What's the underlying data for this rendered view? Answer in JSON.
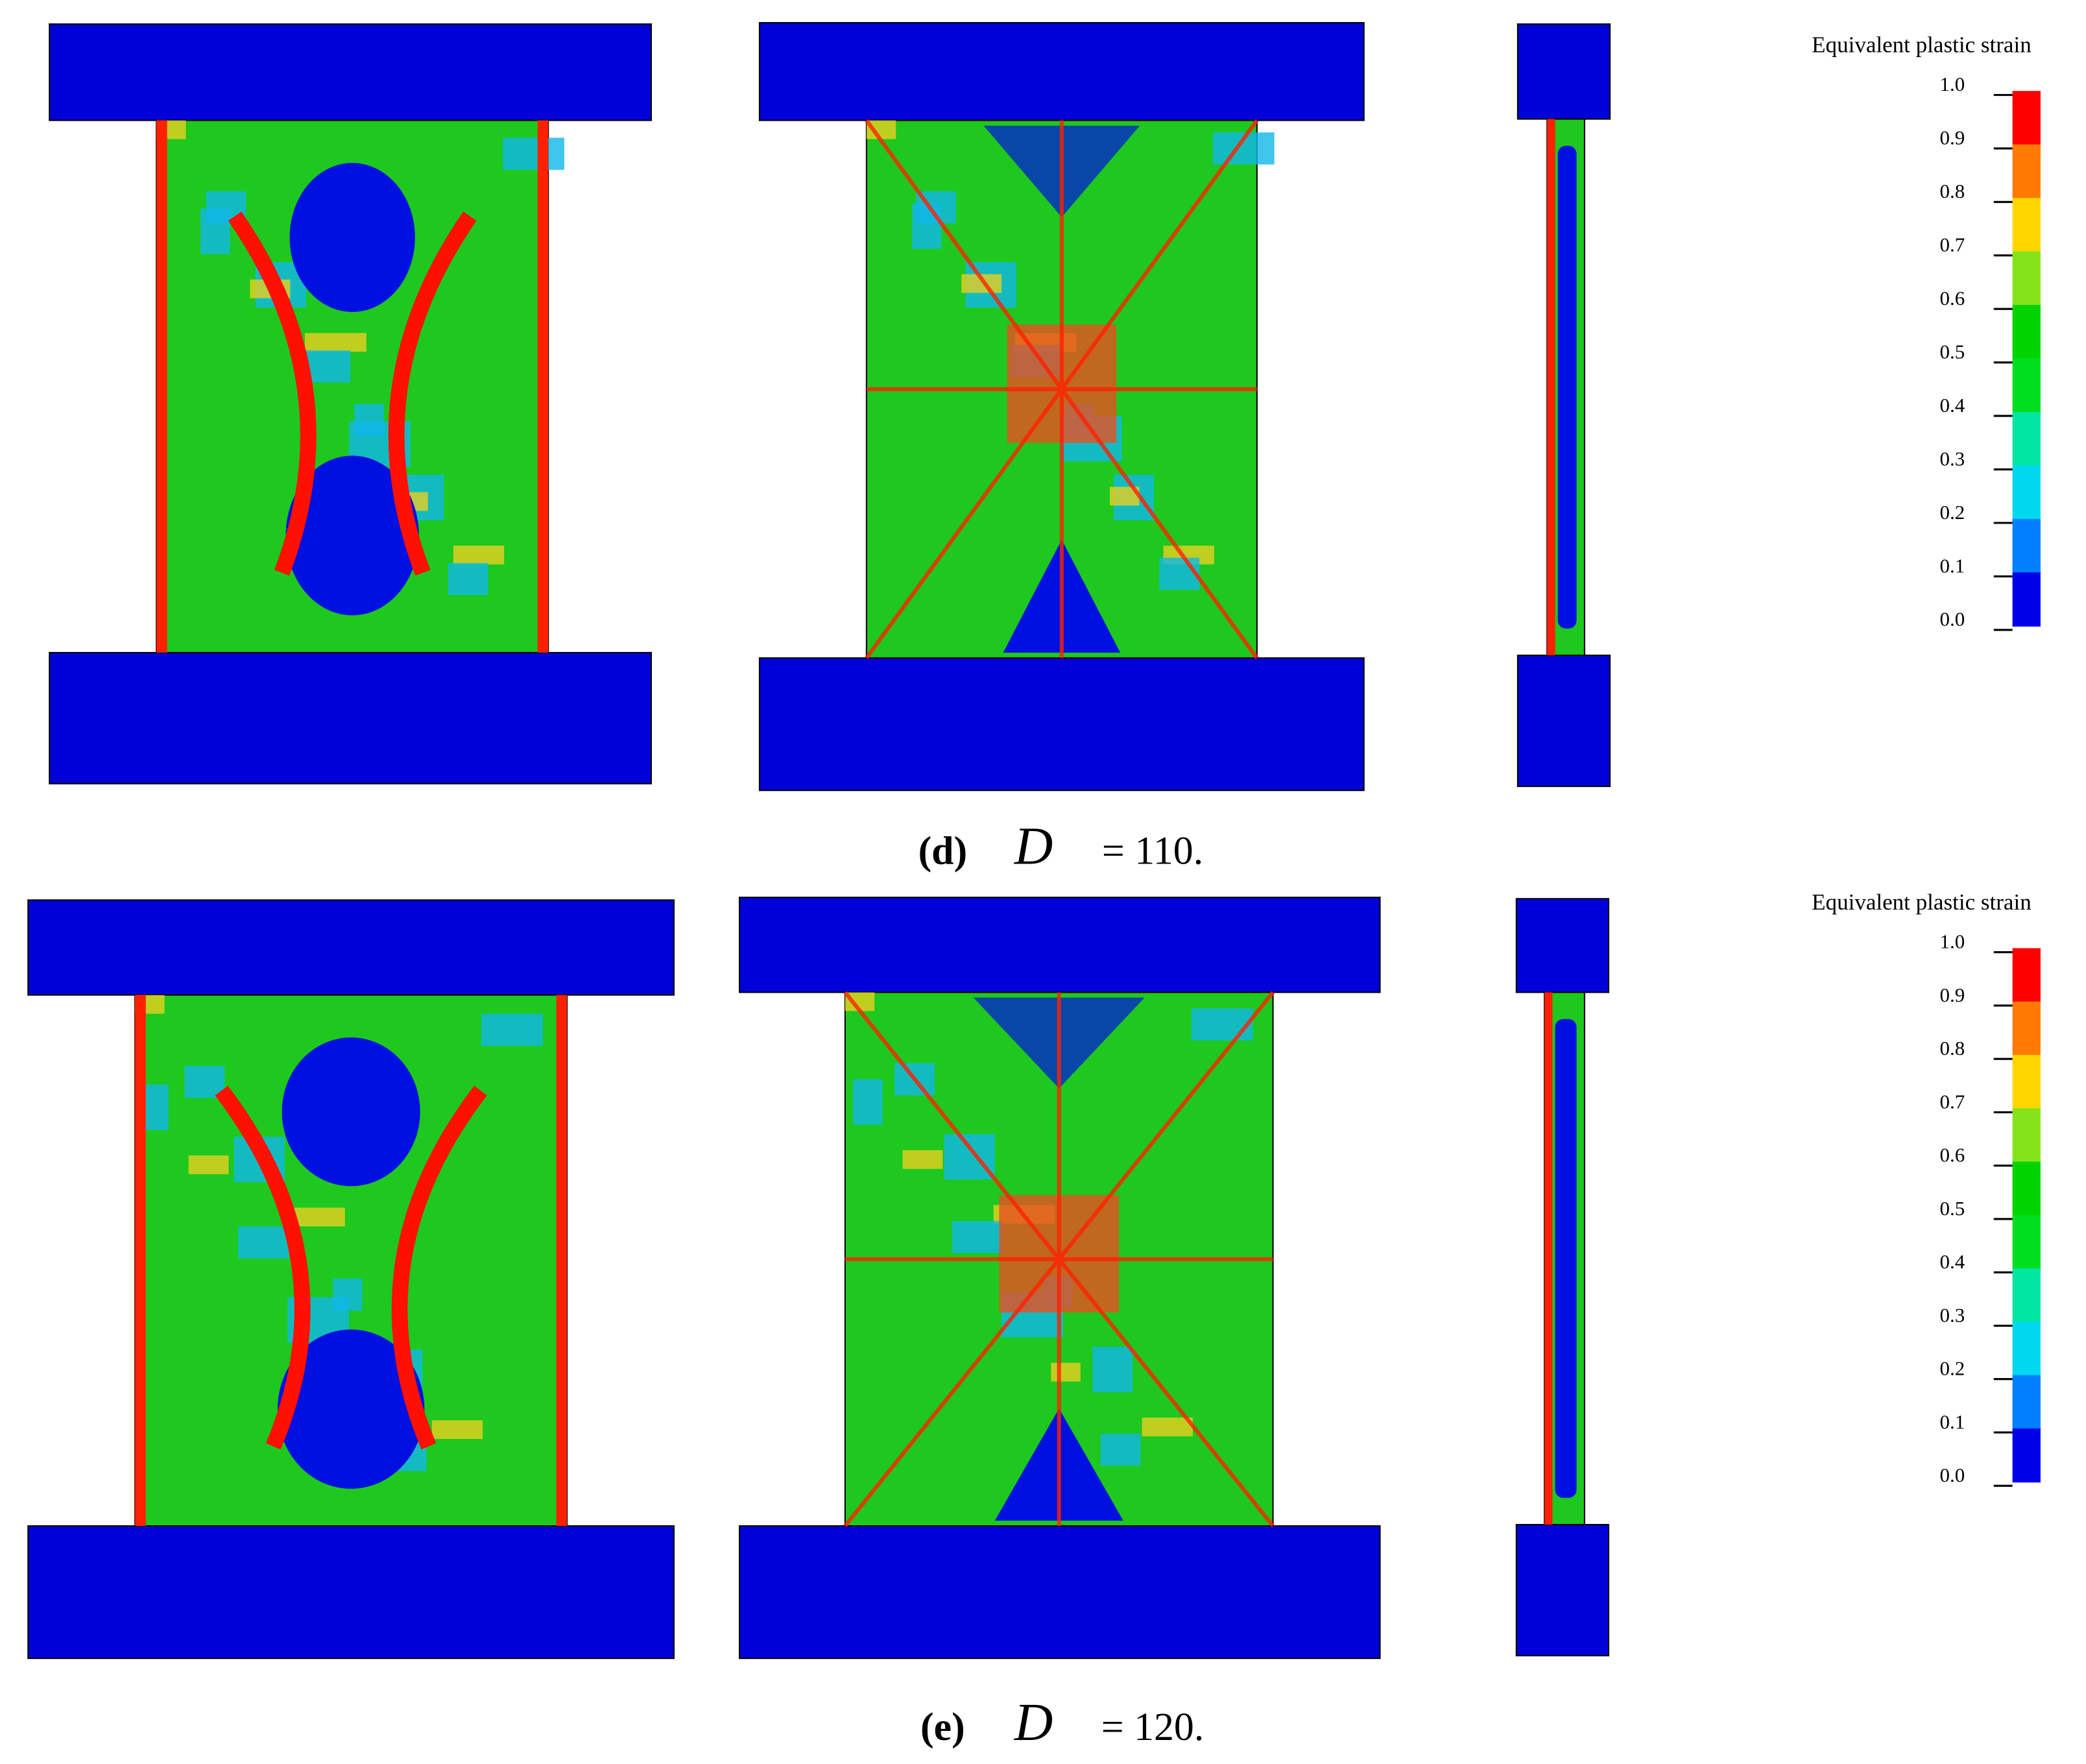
{
  "panels": [
    {
      "label": "(d)",
      "variable": "D",
      "equation": "= 110.",
      "legend": {
        "title": "Equivalent plastic strain",
        "ticks": [
          "1.0",
          "0.9",
          "0.8",
          "0.7",
          "0.6",
          "0.5",
          "0.4",
          "0.3",
          "0.2",
          "0.1",
          "0.0"
        ]
      }
    },
    {
      "label": "(e)",
      "variable": "D",
      "equation": "= 120.",
      "legend": {
        "title": "Equivalent plastic strain",
        "ticks": [
          "1.0",
          "0.9",
          "0.8",
          "0.7",
          "0.6",
          "0.5",
          "0.4",
          "0.3",
          "0.2",
          "0.1",
          "0.0"
        ]
      }
    }
  ]
}
